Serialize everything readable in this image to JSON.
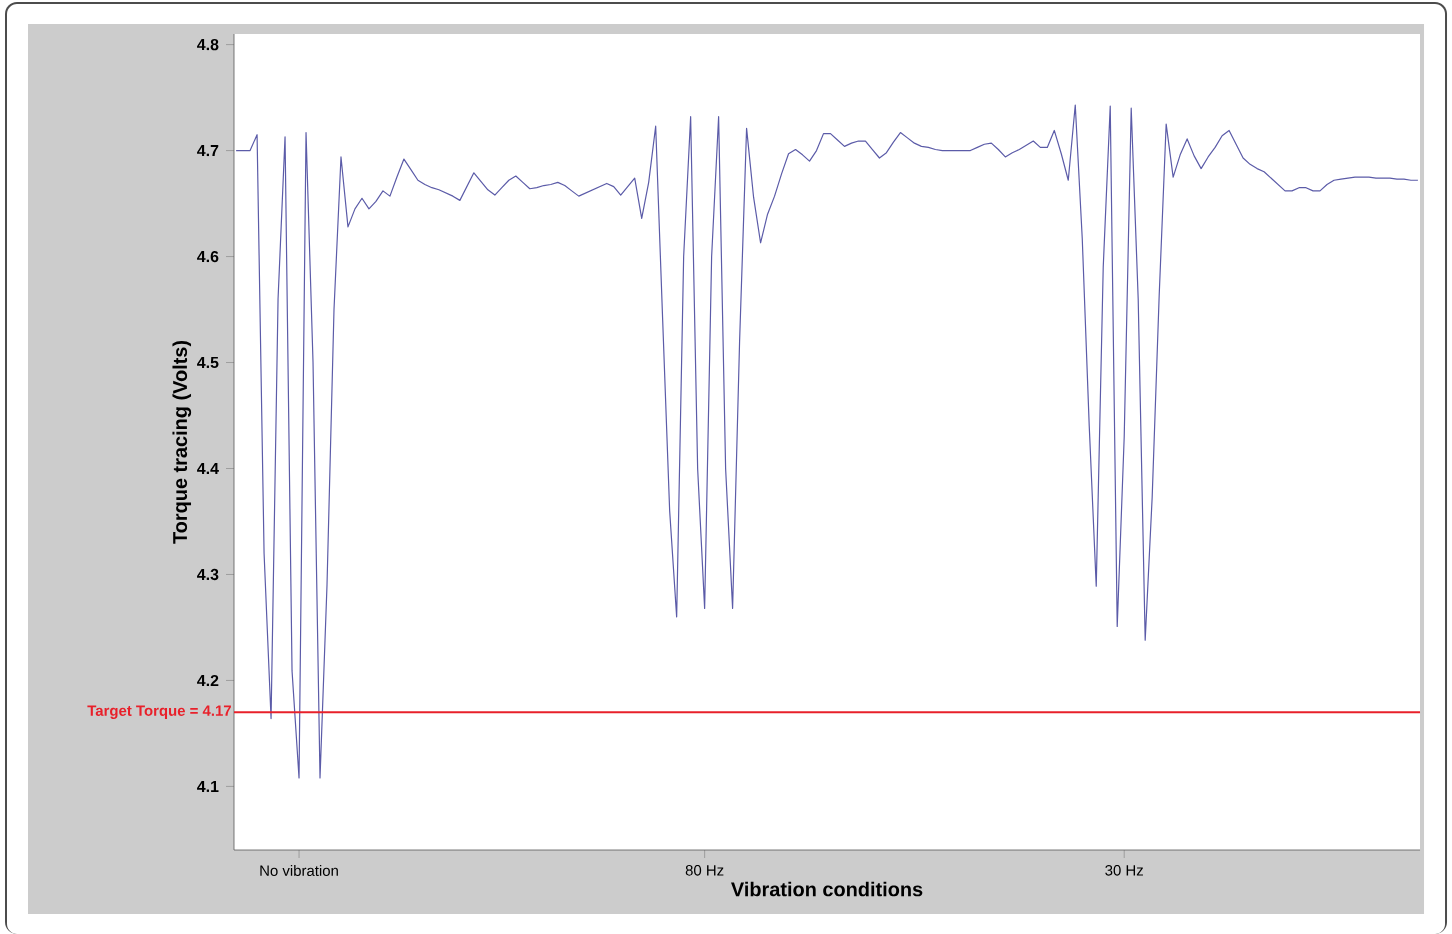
{
  "chart_data": {
    "type": "line",
    "xlabel": "Vibration conditions",
    "ylabel": "Torque tracing (Volts)",
    "categories": [
      null,
      null,
      null,
      null,
      null,
      null,
      null,
      null,
      null,
      "No vibration",
      null,
      null,
      null,
      null,
      null,
      null,
      null,
      null,
      null,
      null,
      null,
      null,
      null,
      null,
      null,
      null,
      null,
      null,
      null,
      null,
      null,
      null,
      null,
      null,
      null,
      null,
      null,
      null,
      null,
      null,
      null,
      null,
      null,
      null,
      null,
      null,
      null,
      null,
      null,
      null,
      null,
      null,
      null,
      null,
      null,
      null,
      null,
      null,
      null,
      null,
      null,
      null,
      null,
      null,
      null,
      null,
      null,
      "80 Hz",
      null,
      null,
      null,
      null,
      null,
      null,
      null,
      null,
      null,
      null,
      null,
      null,
      null,
      null,
      null,
      null,
      null,
      null,
      null,
      null,
      null,
      null,
      null,
      null,
      null,
      null,
      null,
      null,
      null,
      null,
      null,
      null,
      null,
      null,
      null,
      null,
      null,
      null,
      null,
      null,
      null,
      null,
      null,
      null,
      null,
      null,
      null,
      null,
      null,
      null,
      null,
      null,
      null,
      null,
      null,
      null,
      null,
      null,
      null,
      "30 Hz",
      null,
      null,
      null,
      null,
      null,
      null,
      null,
      null,
      null,
      null,
      null,
      null,
      null,
      null,
      null,
      null,
      null,
      null,
      null,
      null,
      null,
      null,
      null,
      null,
      null,
      null,
      null,
      null,
      null,
      null,
      null,
      null,
      null,
      null,
      null,
      null,
      null,
      null,
      null,
      null,
      null,
      null
    ],
    "series": [
      {
        "color": "#5b5ba8",
        "values": [
          4.7,
          4.7,
          4.7,
          4.715,
          4.32,
          4.164,
          4.56,
          4.713,
          4.209,
          4.108,
          4.717,
          4.5,
          4.108,
          4.29,
          4.55,
          4.694,
          4.628,
          4.645,
          4.655,
          4.645,
          4.652,
          4.662,
          4.657,
          4.675,
          4.692,
          4.682,
          4.672,
          4.668,
          4.665,
          4.663,
          4.66,
          4.657,
          4.653,
          4.666,
          4.679,
          4.671,
          4.663,
          4.658,
          4.665,
          4.672,
          4.676,
          4.67,
          4.664,
          4.665,
          4.667,
          4.668,
          4.67,
          4.667,
          4.662,
          4.657,
          4.66,
          4.663,
          4.666,
          4.669,
          4.666,
          4.658,
          4.666,
          4.674,
          4.636,
          4.67,
          4.723,
          4.54,
          4.36,
          4.26,
          4.6,
          4.732,
          4.4,
          4.268,
          4.6,
          4.732,
          4.4,
          4.268,
          4.52,
          4.721,
          4.656,
          4.613,
          4.64,
          4.657,
          4.678,
          4.697,
          4.701,
          4.696,
          4.69,
          4.7,
          4.716,
          4.716,
          4.71,
          4.704,
          4.707,
          4.709,
          4.709,
          4.701,
          4.693,
          4.698,
          4.708,
          4.717,
          4.712,
          4.707,
          4.704,
          4.703,
          4.701,
          4.7,
          4.7,
          4.7,
          4.7,
          4.7,
          4.703,
          4.706,
          4.707,
          4.701,
          4.694,
          4.698,
          4.701,
          4.705,
          4.709,
          4.703,
          4.703,
          4.719,
          4.697,
          4.672,
          4.743,
          4.617,
          4.44,
          4.289,
          4.59,
          4.742,
          4.251,
          4.43,
          4.74,
          4.56,
          4.238,
          4.373,
          4.563,
          4.725,
          4.675,
          4.696,
          4.711,
          4.695,
          4.683,
          4.694,
          4.703,
          4.714,
          4.719,
          4.706,
          4.693,
          4.687,
          4.683,
          4.68,
          4.674,
          4.668,
          4.662,
          4.662,
          4.665,
          4.665,
          4.662,
          4.662,
          4.668,
          4.672,
          4.673,
          4.674,
          4.675,
          4.675,
          4.675,
          4.674,
          4.674,
          4.674,
          4.673,
          4.673,
          4.672,
          4.672
        ]
      }
    ],
    "ylim": [
      4.04,
      4.81
    ],
    "yticks": [
      4.1,
      4.2,
      4.3,
      4.4,
      4.5,
      4.6,
      4.7,
      4.8
    ],
    "ref_lines": [
      {
        "axis": "y",
        "value": 4.17,
        "label": "Target Torque = 4.17",
        "color": "#e8202a"
      }
    ]
  }
}
